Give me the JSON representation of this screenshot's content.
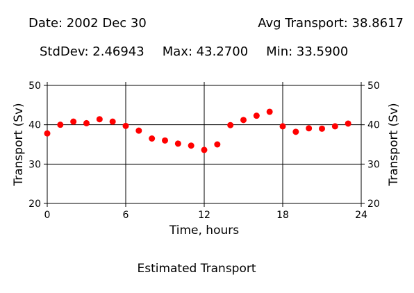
{
  "header": {
    "date": "Date: 2002 Dec 30",
    "avg": "Avg Transport: 38.8617",
    "stddev": "StdDev: 2.46943",
    "max": "Max: 43.2700",
    "min": "Min: 33.5900"
  },
  "chart_data": {
    "type": "scatter",
    "title": "Estimated Transport",
    "xlabel": "Time, hours",
    "ylabel": "Transport (Sv)",
    "xlim": [
      0,
      24
    ],
    "ylim": [
      20,
      50
    ],
    "xticks": [
      "0",
      "6",
      "12",
      "18",
      "24"
    ],
    "yticks": [
      "20",
      "30",
      "40",
      "50"
    ],
    "grid": true,
    "marker_color": "#ff0000",
    "series": [
      {
        "x": [
          0,
          1,
          2,
          3,
          4,
          5,
          6,
          7,
          8,
          9,
          10,
          11,
          12,
          13,
          14,
          15,
          16,
          17,
          18,
          19,
          20,
          21,
          22,
          23
        ],
        "y": [
          37.8,
          40.0,
          40.8,
          40.4,
          41.4,
          40.8,
          39.7,
          38.5,
          36.5,
          36.0,
          35.2,
          34.7,
          33.6,
          35.0,
          39.9,
          41.2,
          42.3,
          43.3,
          39.6,
          38.2,
          39.1,
          39.0,
          39.6,
          40.3
        ]
      }
    ]
  }
}
